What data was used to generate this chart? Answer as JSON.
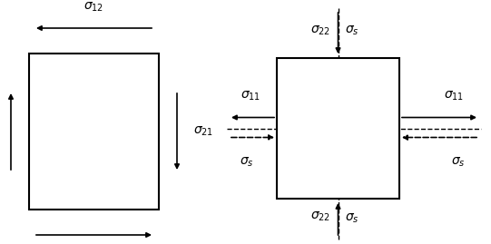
{
  "fig_width": 5.41,
  "fig_height": 2.69,
  "dpi": 100,
  "bg_color": "#ffffff",
  "box_color": "#000000",
  "fontsize": 10
}
